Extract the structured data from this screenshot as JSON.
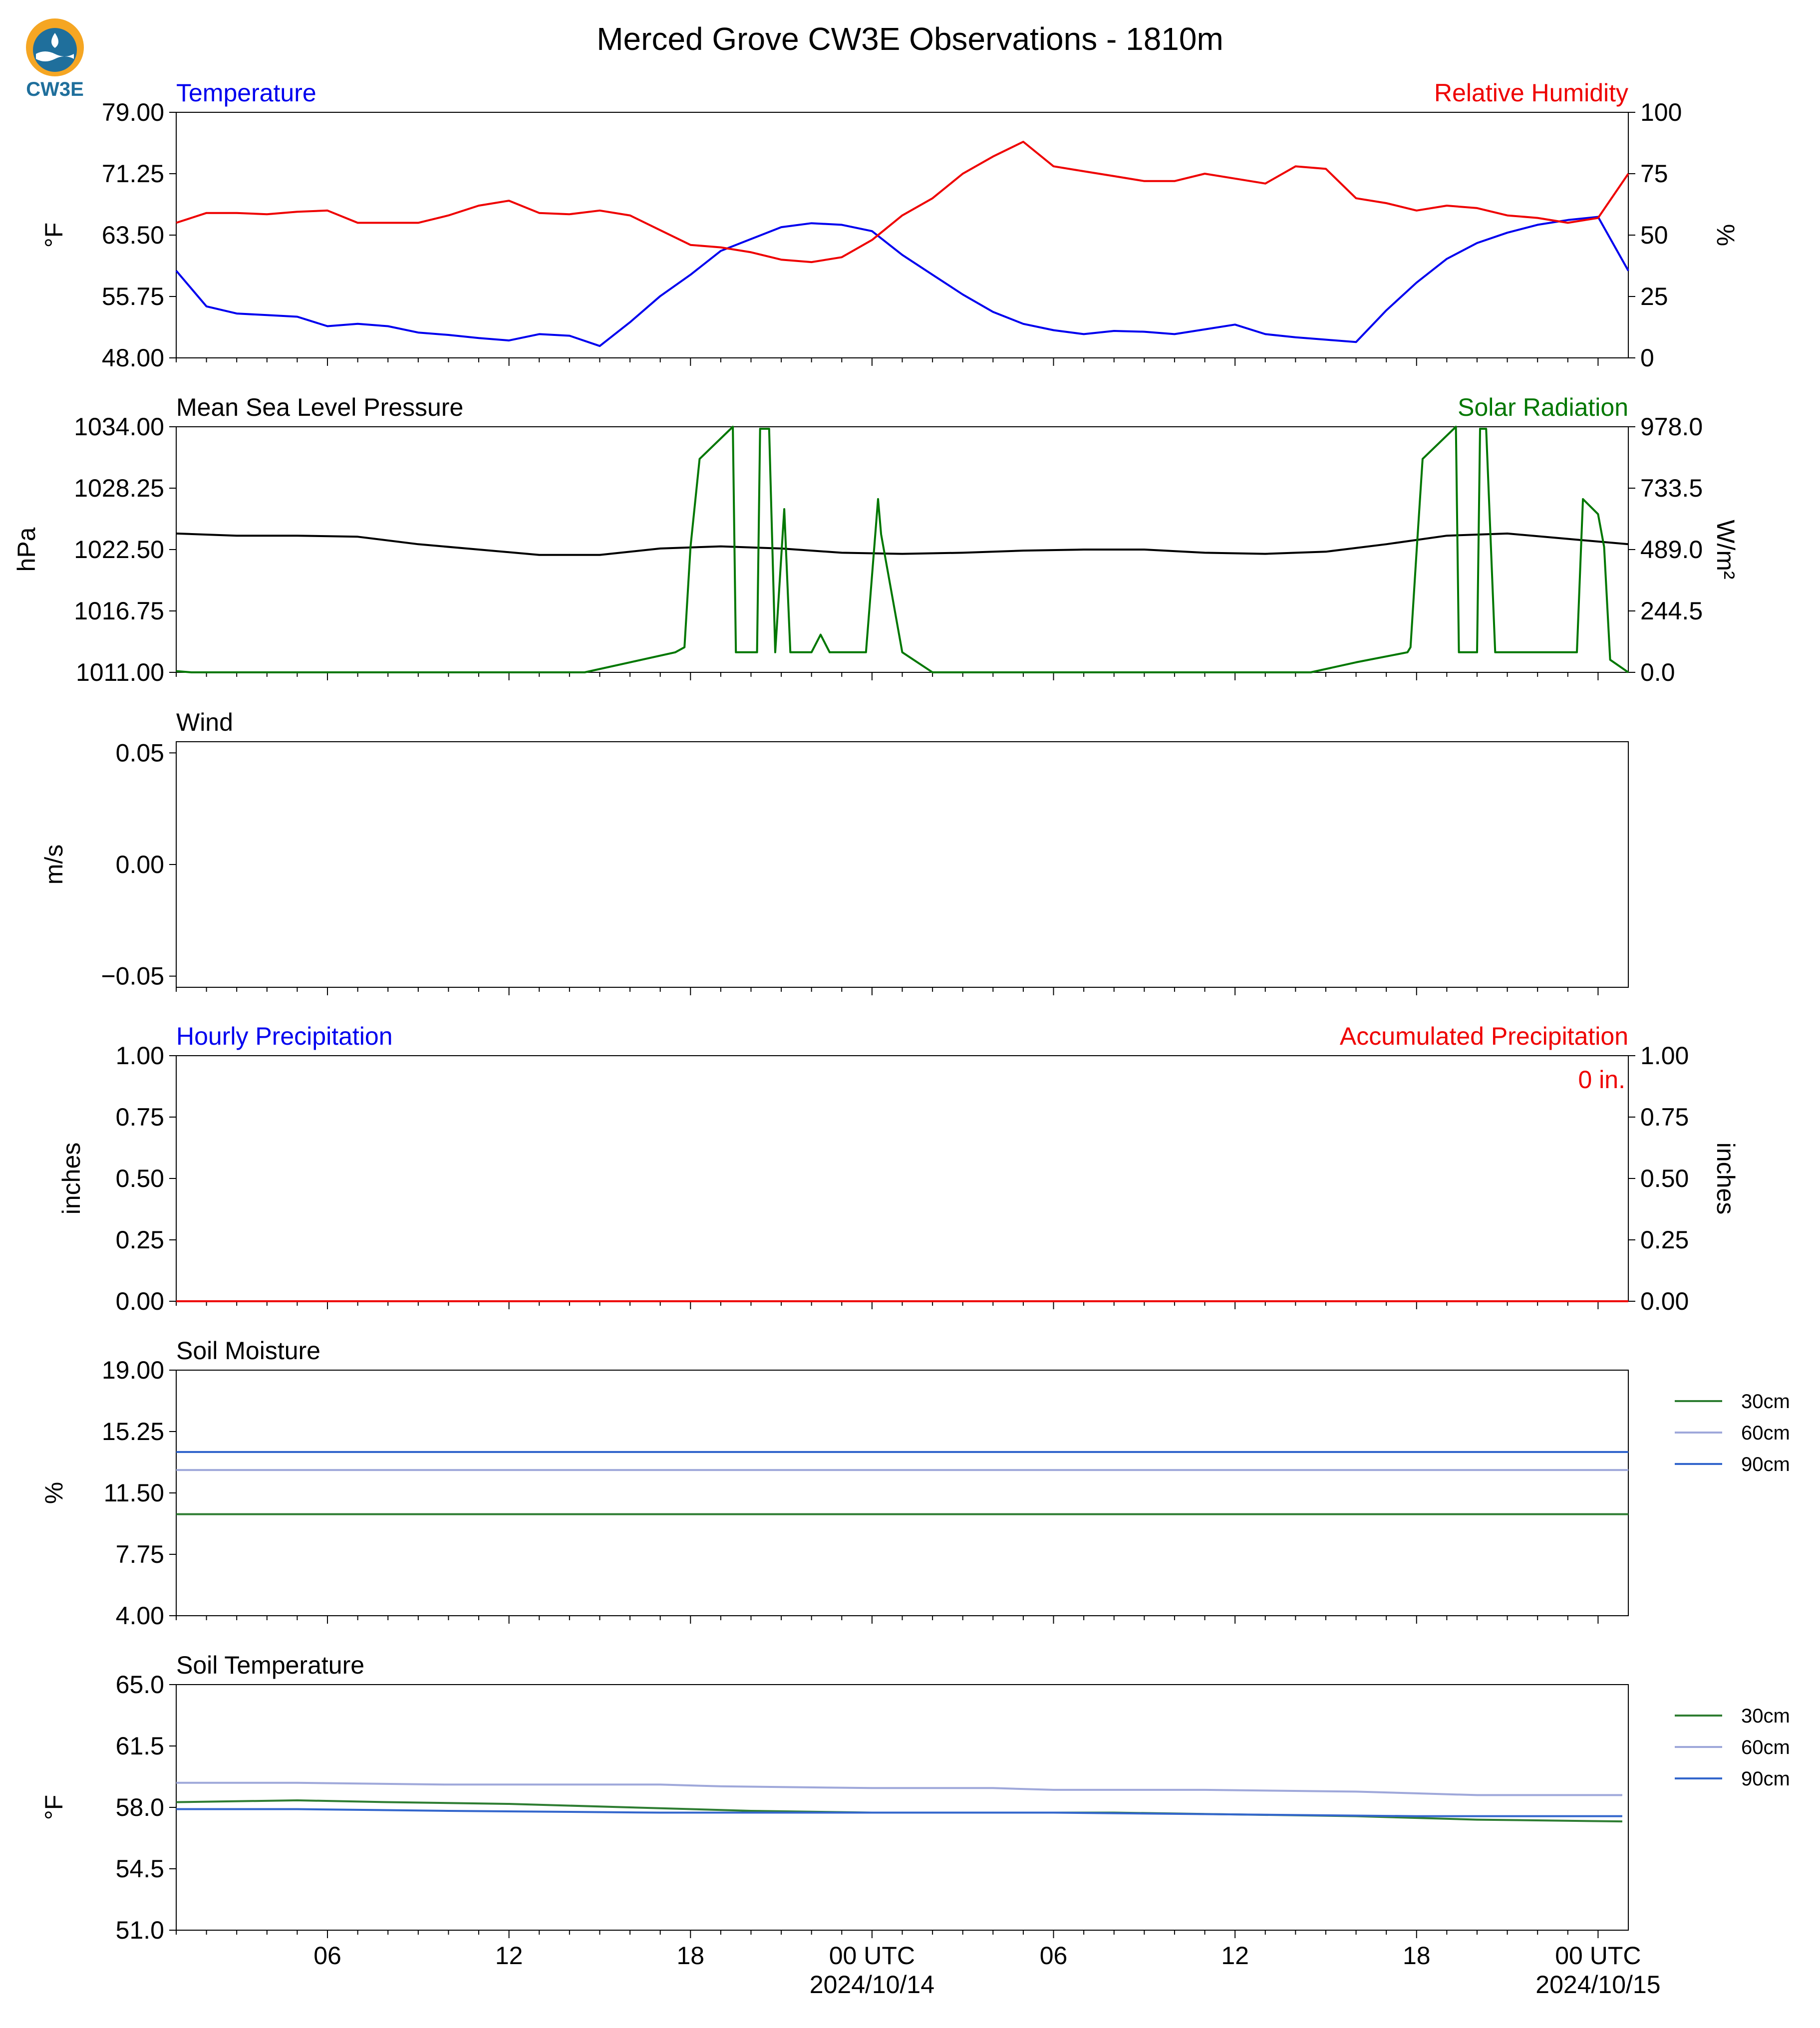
{
  "figure": {
    "title": "Merced Grove CW3E Observations - 1810m",
    "logo_text": "CW3E",
    "x_ticks": [
      "06",
      "12",
      "18",
      "00 UTC",
      "06",
      "12",
      "18",
      "00 UTC"
    ],
    "x_tick_hours": [
      6,
      12,
      18,
      24,
      30,
      36,
      42,
      48
    ],
    "date_labels": [
      "2024/10/14",
      "2024/10/15"
    ],
    "x_range_hours": [
      1,
      49
    ]
  },
  "colors": {
    "temperature": "#0000ee",
    "humidity": "#ee0000",
    "pressure": "#000000",
    "solar": "#007700",
    "soil_30": "#2e7d32",
    "soil_60": "#9fa8da",
    "soil_90": "#3366cc"
  },
  "chart_data": [
    {
      "id": "temp_rh",
      "type": "line",
      "left_title": "Temperature",
      "right_title": "Relative Humidity",
      "ylabel": "°F",
      "ylabel_right": "%",
      "ylim": [
        48,
        79
      ],
      "ylim_right": [
        0,
        100
      ],
      "yticks": [
        "48.00",
        "55.75",
        "63.50",
        "71.25",
        "79.00"
      ],
      "yticks_right": [
        "0",
        "25",
        "50",
        "75",
        "100"
      ],
      "x": [
        1,
        2,
        3,
        4,
        5,
        6,
        7,
        8,
        9,
        10,
        11,
        12,
        13,
        14,
        15,
        16,
        17,
        18,
        19,
        20,
        21,
        22,
        23,
        24,
        25,
        26,
        27,
        28,
        29,
        30,
        31,
        32,
        33,
        34,
        35,
        36,
        37,
        38,
        39,
        40,
        41,
        42,
        43,
        44,
        45,
        46,
        47,
        48,
        49
      ],
      "series": [
        {
          "name": "Temperature",
          "axis": "left",
          "color_key": "temperature",
          "values": [
            59.0,
            54.5,
            53.6,
            53.4,
            53.2,
            52.0,
            52.3,
            52.0,
            51.2,
            50.9,
            50.5,
            50.2,
            51.0,
            50.8,
            49.5,
            52.5,
            55.8,
            58.5,
            61.5,
            63.0,
            64.5,
            65.0,
            64.8,
            64.0,
            61.0,
            58.5,
            56.0,
            53.8,
            52.3,
            51.5,
            51.0,
            51.4,
            51.3,
            51.0,
            51.6,
            52.2,
            51.0,
            50.6,
            50.3,
            50.0,
            54.0,
            57.5,
            60.5,
            62.5,
            63.8,
            64.8,
            65.4,
            65.8,
            59.0
          ]
        },
        {
          "name": "Relative Humidity",
          "axis": "right",
          "color_key": "humidity",
          "values": [
            55.0,
            59.0,
            59.0,
            58.5,
            59.5,
            60.0,
            55.0,
            55.0,
            55.0,
            58.0,
            62.0,
            64.0,
            59.0,
            58.5,
            60.0,
            58.0,
            52.0,
            46.0,
            45.0,
            43.0,
            40.0,
            39.0,
            41.0,
            48.0,
            58.0,
            65.0,
            75.0,
            82.0,
            88.0,
            78.0,
            76.0,
            74.0,
            72.0,
            72.0,
            75.0,
            73.0,
            71.0,
            78.0,
            77.0,
            65.0,
            63.0,
            60.0,
            62.0,
            61.0,
            58.0,
            57.0,
            55.0,
            57.0,
            75.0
          ]
        }
      ]
    },
    {
      "id": "pres_solar",
      "type": "line",
      "left_title": "Mean Sea Level Pressure",
      "right_title": "Solar Radiation",
      "ylabel": "hPa",
      "ylabel_right": "W/m²",
      "ylim": [
        1011,
        1034
      ],
      "ylim_right": [
        0,
        978
      ],
      "yticks": [
        "1011.00",
        "1016.75",
        "1022.50",
        "1028.25",
        "1034.00"
      ],
      "yticks_right": [
        "0.0",
        "244.5",
        "489.0",
        "733.5",
        "978.0"
      ],
      "series": [
        {
          "name": "Mean Sea Level Pressure",
          "axis": "left",
          "color_key": "pressure",
          "x": [
            1,
            3,
            5,
            7,
            9,
            11,
            13,
            15,
            17,
            19,
            21,
            23,
            25,
            27,
            29,
            31,
            33,
            35,
            37,
            39,
            41,
            43,
            45,
            47,
            49
          ],
          "values": [
            1024.0,
            1023.8,
            1023.8,
            1023.7,
            1023.0,
            1022.5,
            1022.0,
            1022.0,
            1022.6,
            1022.8,
            1022.6,
            1022.2,
            1022.1,
            1022.2,
            1022.4,
            1022.5,
            1022.5,
            1022.2,
            1022.1,
            1022.3,
            1023.0,
            1023.8,
            1024.0,
            1023.5,
            1023.0
          ]
        },
        {
          "name": "Solar Radiation",
          "axis": "right",
          "color_key": "solar",
          "x": [
            1,
            1.5,
            14.5,
            16,
            17.5,
            17.8,
            18.0,
            18.3,
            19.4,
            19.5,
            20.0,
            20.2,
            20.3,
            20.6,
            20.8,
            21.1,
            21.3,
            21.4,
            22.0,
            22.3,
            22.6,
            23.3,
            23.8,
            24.2,
            24.3,
            25.0,
            26.0,
            38.5,
            40.0,
            41.7,
            41.8,
            42.0,
            42.2,
            43.3,
            43.4,
            44.0,
            44.1,
            44.3,
            44.6,
            45.3,
            45.6,
            46.3,
            46.6,
            47.3,
            47.5,
            48.0,
            48.2,
            48.4,
            49.0
          ],
          "values": [
            5,
            0,
            0,
            40,
            80,
            100,
            500,
            850,
            978,
            80,
            80,
            80,
            970,
            970,
            80,
            650,
            80,
            80,
            80,
            150,
            80,
            80,
            80,
            690,
            550,
            80,
            0,
            0,
            40,
            80,
            100,
            480,
            850,
            978,
            80,
            80,
            970,
            970,
            80,
            80,
            80,
            80,
            80,
            80,
            690,
            630,
            500,
            50,
            0
          ]
        }
      ]
    },
    {
      "id": "wind",
      "type": "line",
      "left_title": "Wind",
      "ylabel": "m/s",
      "ylim": [
        -0.055,
        0.055
      ],
      "yticks": [
        "−0.05",
        "0.00",
        "0.05"
      ],
      "series": []
    },
    {
      "id": "precip",
      "type": "line",
      "left_title": "Hourly Precipitation",
      "right_title": "Accumulated Precipitation",
      "ylabel": "inches",
      "ylabel_right": "inches",
      "ylim": [
        0,
        1
      ],
      "ylim_right": [
        0,
        1
      ],
      "yticks": [
        "0.00",
        "0.25",
        "0.50",
        "0.75",
        "1.00"
      ],
      "yticks_right": [
        "0.00",
        "0.25",
        "0.50",
        "0.75",
        "1.00"
      ],
      "annotation": "0 in.",
      "series": [
        {
          "name": "Hourly Precipitation",
          "axis": "left",
          "color_key": "temperature",
          "x": [
            1,
            49
          ],
          "values": [
            0,
            0
          ]
        },
        {
          "name": "Accumulated Precipitation",
          "axis": "right",
          "color_key": "humidity",
          "x": [
            1,
            49
          ],
          "values": [
            0,
            0
          ]
        }
      ]
    },
    {
      "id": "soil_moisture",
      "type": "line",
      "left_title": "Soil Moisture",
      "ylabel": "%",
      "ylim": [
        4,
        19
      ],
      "yticks": [
        "4.00",
        "7.75",
        "11.50",
        "15.25",
        "19.00"
      ],
      "legend": [
        "30cm",
        "60cm",
        "90cm"
      ],
      "series": [
        {
          "name": "30cm",
          "color_key": "soil_30",
          "x": [
            1,
            49
          ],
          "values": [
            10.2,
            10.2
          ]
        },
        {
          "name": "60cm",
          "color_key": "soil_60",
          "x": [
            1,
            49
          ],
          "values": [
            12.9,
            12.9
          ]
        },
        {
          "name": "90cm",
          "color_key": "soil_90",
          "x": [
            1,
            49
          ],
          "values": [
            14.0,
            14.0
          ]
        }
      ]
    },
    {
      "id": "soil_temp",
      "type": "line",
      "left_title": "Soil Temperature",
      "ylabel": "°F",
      "ylim": [
        51,
        65
      ],
      "yticks": [
        "51.0",
        "54.5",
        "58.0",
        "61.5",
        "65.0"
      ],
      "legend": [
        "30cm",
        "60cm",
        "90cm"
      ],
      "series": [
        {
          "name": "30cm",
          "color_key": "soil_30",
          "x": [
            1,
            5,
            8,
            12,
            16,
            20,
            24,
            28,
            32,
            36,
            40,
            44,
            48.8
          ],
          "values": [
            58.3,
            58.4,
            58.3,
            58.2,
            58.0,
            57.8,
            57.7,
            57.7,
            57.7,
            57.6,
            57.5,
            57.3,
            57.2
          ]
        },
        {
          "name": "60cm",
          "color_key": "soil_60",
          "x": [
            1,
            5,
            10,
            17,
            19,
            24,
            28,
            30,
            35,
            40,
            42,
            44,
            48.8
          ],
          "values": [
            59.4,
            59.4,
            59.3,
            59.3,
            59.2,
            59.1,
            59.1,
            59.0,
            59.0,
            58.9,
            58.8,
            58.7,
            58.7
          ]
        },
        {
          "name": "90cm",
          "color_key": "soil_90",
          "x": [
            1,
            5,
            10,
            17,
            24,
            30,
            36,
            42,
            48.8
          ],
          "values": [
            57.9,
            57.9,
            57.8,
            57.7,
            57.7,
            57.7,
            57.6,
            57.5,
            57.5
          ]
        }
      ]
    }
  ]
}
